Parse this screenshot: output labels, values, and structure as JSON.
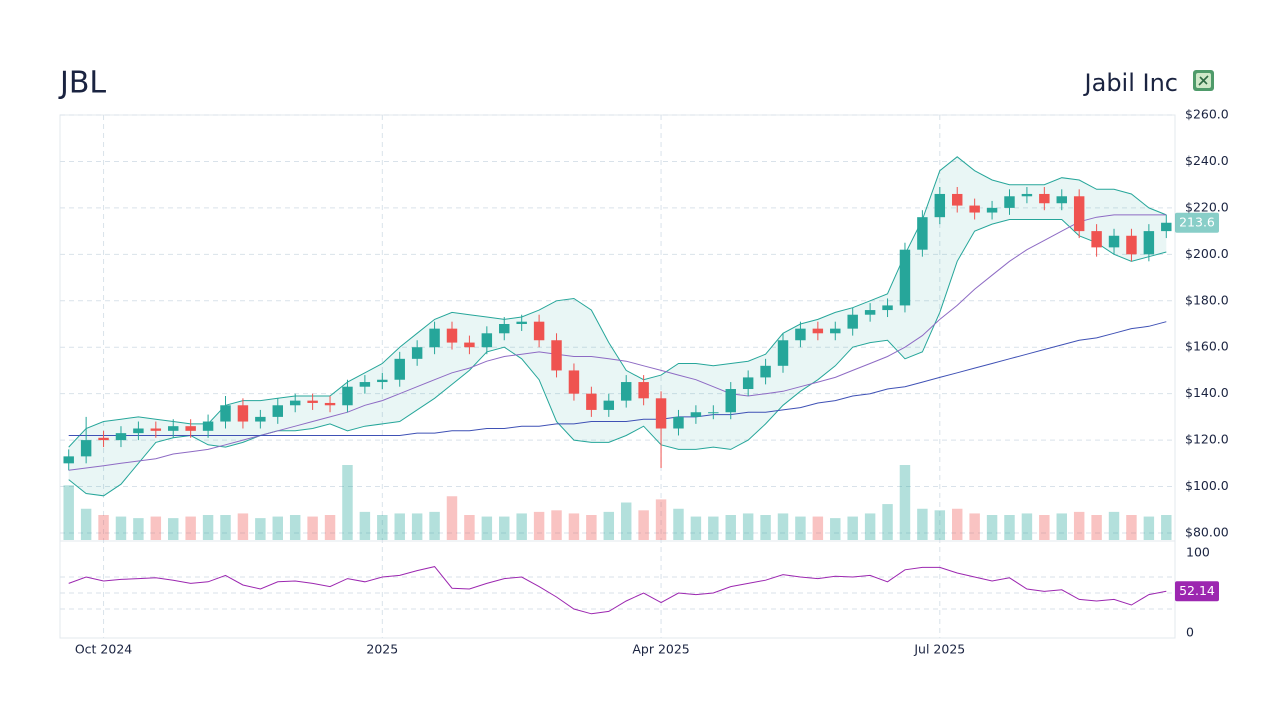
{
  "chart_data": {
    "type": "candlestick",
    "title": "JBL",
    "subtitle": "Jabil Inc",
    "categories": [
      null,
      null,
      "Oct 2024",
      null,
      null,
      null,
      null,
      null,
      null,
      null,
      null,
      null,
      null,
      null,
      null,
      null,
      null,
      null,
      "2025",
      null,
      null,
      null,
      null,
      null,
      null,
      null,
      null,
      null,
      null,
      null,
      null,
      null,
      null,
      null,
      "Apr 2025",
      null,
      null,
      null,
      null,
      null,
      null,
      null,
      null,
      null,
      null,
      null,
      null,
      null,
      null,
      null,
      "Jul 2025",
      null,
      null,
      null,
      null,
      null,
      null,
      null,
      null,
      null,
      null,
      null,
      null,
      null
    ],
    "open": [
      110,
      113,
      121,
      120,
      123,
      125,
      124,
      126,
      124,
      128,
      135,
      128,
      130,
      135,
      137,
      136,
      135,
      143,
      145,
      146,
      155,
      160,
      168,
      162,
      160,
      166,
      170,
      171,
      163,
      150,
      140,
      133,
      137,
      145,
      138,
      125,
      130,
      132,
      132,
      142,
      147,
      152,
      163,
      168,
      166,
      168,
      174,
      176,
      178,
      202,
      216,
      226,
      221,
      218,
      220,
      225,
      226,
      222,
      225,
      210,
      203,
      208,
      200,
      210
    ],
    "high": [
      116,
      130,
      124,
      126,
      128,
      128,
      129,
      129,
      131,
      139,
      138,
      133,
      138,
      140,
      140,
      139,
      146,
      148,
      149,
      158,
      163,
      171,
      171,
      165,
      169,
      173,
      174,
      174,
      166,
      153,
      143,
      140,
      148,
      148,
      141,
      133,
      135,
      135,
      145,
      150,
      155,
      166,
      171,
      171,
      171,
      177,
      179,
      181,
      205,
      219,
      229,
      229,
      224,
      223,
      228,
      229,
      229,
      228,
      228,
      213,
      211,
      211,
      213,
      217
    ],
    "low": [
      107,
      110,
      117,
      117,
      120,
      121,
      121,
      121,
      121,
      125,
      125,
      125,
      127,
      132,
      133,
      132,
      132,
      140,
      142,
      143,
      152,
      157,
      159,
      157,
      157,
      163,
      167,
      160,
      147,
      137,
      130,
      130,
      134,
      135,
      108,
      122,
      127,
      129,
      129,
      139,
      144,
      149,
      160,
      163,
      163,
      165,
      171,
      173,
      175,
      199,
      213,
      218,
      215,
      215,
      217,
      222,
      219,
      219,
      207,
      199,
      200,
      197,
      197,
      207
    ],
    "close": [
      113,
      120,
      120,
      123,
      125,
      124,
      126,
      124,
      128,
      135,
      128,
      130,
      135,
      137,
      136,
      135,
      143,
      145,
      146,
      155,
      160,
      168,
      162,
      160,
      166,
      170,
      171,
      163,
      150,
      140,
      133,
      137,
      145,
      138,
      125,
      130,
      132,
      132,
      142,
      147,
      152,
      163,
      168,
      166,
      168,
      174,
      176,
      178,
      202,
      216,
      226,
      221,
      218,
      220,
      225,
      226,
      222,
      225,
      210,
      203,
      208,
      200,
      210,
      213.6
    ],
    "volume": [
      3.5,
      2.0,
      1.6,
      1.5,
      1.4,
      1.5,
      1.4,
      1.5,
      1.6,
      1.6,
      1.7,
      1.4,
      1.5,
      1.6,
      1.5,
      1.6,
      4.8,
      1.8,
      1.6,
      1.7,
      1.7,
      1.8,
      2.8,
      1.6,
      1.5,
      1.5,
      1.7,
      1.8,
      1.9,
      1.7,
      1.6,
      1.8,
      2.4,
      1.9,
      2.6,
      2.0,
      1.5,
      1.5,
      1.6,
      1.7,
      1.6,
      1.7,
      1.5,
      1.5,
      1.4,
      1.5,
      1.7,
      2.3,
      4.8,
      2.0,
      1.9,
      2.0,
      1.7,
      1.6,
      1.6,
      1.7,
      1.6,
      1.7,
      1.8,
      1.6,
      1.8,
      1.6,
      1.5,
      1.6
    ],
    "up_color": "#26a69a",
    "down_color": "#ef5350",
    "ylim": [
      80,
      260
    ],
    "yticks": [
      {
        "value": 80,
        "label": "$80.00"
      },
      {
        "value": 100,
        "label": "$100.0"
      },
      {
        "value": 120,
        "label": "$120.0"
      },
      {
        "value": 140,
        "label": "$140.0"
      },
      {
        "value": 160,
        "label": "$160.0"
      },
      {
        "value": 180,
        "label": "$180.0"
      },
      {
        "value": 200,
        "label": "$200.0"
      },
      {
        "value": 220,
        "label": "$220.0"
      },
      {
        "value": 240,
        "label": "$240.0"
      },
      {
        "value": 260,
        "label": "$260.0"
      }
    ],
    "grid": true,
    "overlays": [
      {
        "type": "band",
        "color": "#26a69a",
        "upper": [
          117,
          125,
          128,
          129,
          130,
          129,
          128,
          127,
          127,
          135,
          137,
          137,
          138,
          139,
          139,
          139,
          145,
          149,
          153,
          160,
          166,
          172,
          175,
          174,
          173,
          172,
          173,
          176,
          180,
          181,
          176,
          162,
          150,
          146,
          148,
          153,
          153,
          152,
          153,
          154,
          157,
          166,
          170,
          172,
          175,
          177,
          180,
          183,
          200,
          215,
          236,
          242,
          236,
          232,
          230,
          230,
          230,
          233,
          232,
          228,
          228,
          226,
          220,
          217
        ],
        "lower": [
          103,
          97,
          96,
          101,
          110,
          119,
          121,
          122,
          118,
          117,
          119,
          122,
          124,
          124,
          125,
          127,
          124,
          126,
          127,
          128,
          133,
          138,
          144,
          150,
          158,
          160,
          155,
          146,
          128,
          120,
          119,
          119,
          122,
          126,
          118,
          116,
          116,
          117,
          116,
          120,
          127,
          135,
          141,
          146,
          152,
          160,
          162,
          163,
          155,
          158,
          175,
          197,
          210,
          213,
          215,
          215,
          215,
          215,
          208,
          205,
          200,
          197,
          199,
          201
        ]
      },
      {
        "type": "line",
        "color": "#8e6bc4",
        "values": [
          107,
          108,
          109,
          110,
          111,
          112,
          114,
          115,
          116,
          118,
          120,
          122,
          124,
          126,
          128,
          130,
          132,
          135,
          137,
          140,
          143,
          146,
          149,
          151,
          154,
          156,
          157,
          158,
          157,
          156,
          156,
          155,
          154,
          152,
          150,
          148,
          146,
          143,
          140,
          139,
          140,
          141,
          143,
          145,
          147,
          150,
          153,
          156,
          160,
          165,
          172,
          178,
          185,
          191,
          197,
          202,
          206,
          210,
          214,
          216,
          217,
          217,
          217,
          217
        ]
      },
      {
        "type": "line",
        "color": "#3f51b5",
        "values": [
          122,
          122,
          122,
          122,
          122,
          122,
          122,
          122,
          122,
          122,
          122,
          122,
          122,
          122,
          122,
          122,
          122,
          122,
          122,
          122,
          123,
          123,
          124,
          124,
          125,
          125,
          126,
          126,
          127,
          127,
          128,
          128,
          128,
          129,
          129,
          130,
          130,
          131,
          131,
          132,
          132,
          133,
          134,
          136,
          137,
          139,
          140,
          142,
          143,
          145,
          147,
          149,
          151,
          153,
          155,
          157,
          159,
          161,
          163,
          164,
          166,
          168,
          169,
          171
        ]
      }
    ],
    "rsi": {
      "color": "#9c27b0",
      "ylim": [
        0,
        100
      ],
      "yticks": [
        0,
        100
      ],
      "values": [
        62,
        70,
        65,
        67,
        68,
        69,
        66,
        62,
        64,
        72,
        60,
        55,
        64,
        65,
        62,
        58,
        68,
        64,
        70,
        72,
        78,
        83,
        56,
        55,
        62,
        68,
        70,
        58,
        45,
        30,
        24,
        27,
        40,
        50,
        38,
        50,
        48,
        50,
        58,
        62,
        66,
        73,
        70,
        68,
        71,
        70,
        72,
        64,
        79,
        82,
        82,
        75,
        70,
        65,
        69,
        55,
        52,
        54,
        42,
        40,
        42,
        35,
        48,
        52.14
      ]
    }
  }
}
